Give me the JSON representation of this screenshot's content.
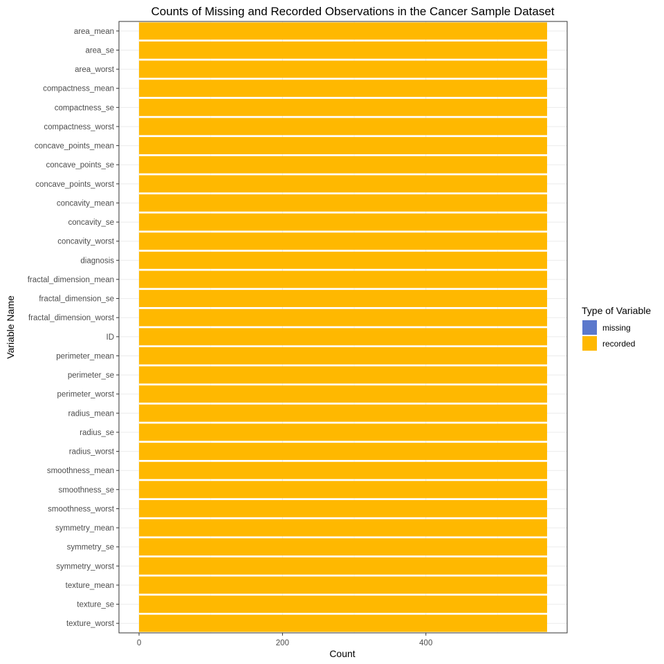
{
  "chart_data": {
    "type": "bar",
    "orientation": "horizontal",
    "stacked": true,
    "title": "Counts of Missing and Recorded Observations in the Cancer Sample Dataset",
    "xlabel": "Count",
    "ylabel": "Variable Name",
    "xlim": [
      -28,
      597
    ],
    "xticks": [
      0,
      200,
      400
    ],
    "grid": true,
    "legend": {
      "title": "Type of Variable",
      "position": "right"
    },
    "categories": [
      "area_mean",
      "area_se",
      "area_worst",
      "compactness_mean",
      "compactness_se",
      "compactness_worst",
      "concave_points_mean",
      "concave_points_se",
      "concave_points_worst",
      "concavity_mean",
      "concavity_se",
      "concavity_worst",
      "diagnosis",
      "fractal_dimension_mean",
      "fractal_dimension_se",
      "fractal_dimension_worst",
      "ID",
      "perimeter_mean",
      "perimeter_se",
      "perimeter_worst",
      "radius_mean",
      "radius_se",
      "radius_worst",
      "smoothness_mean",
      "smoothness_se",
      "smoothness_worst",
      "symmetry_mean",
      "symmetry_se",
      "symmetry_worst",
      "texture_mean",
      "texture_se",
      "texture_worst"
    ],
    "series": [
      {
        "name": "missing",
        "color": "#5b78cc",
        "values": [
          0,
          0,
          0,
          0,
          0,
          0,
          0,
          0,
          0,
          0,
          0,
          0,
          0,
          0,
          0,
          0,
          0,
          0,
          0,
          0,
          0,
          0,
          0,
          0,
          0,
          0,
          0,
          0,
          0,
          0,
          0,
          0
        ]
      },
      {
        "name": "recorded",
        "color": "#ffb800",
        "values": [
          569,
          569,
          569,
          569,
          569,
          569,
          569,
          569,
          569,
          569,
          569,
          569,
          569,
          569,
          569,
          569,
          569,
          569,
          569,
          569,
          569,
          569,
          569,
          569,
          569,
          569,
          569,
          569,
          569,
          569,
          569,
          569
        ]
      }
    ]
  }
}
